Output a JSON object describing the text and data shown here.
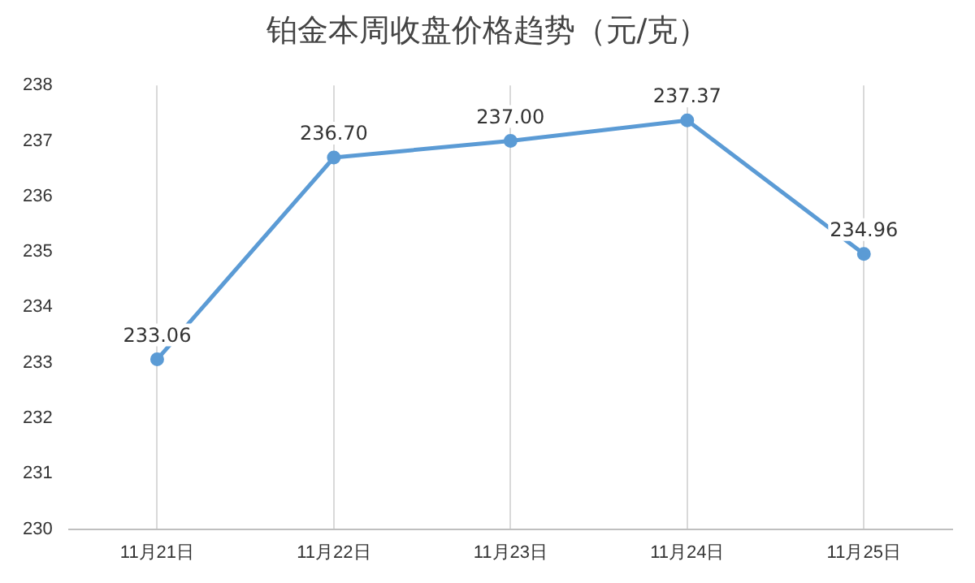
{
  "chart_data": {
    "type": "line",
    "title": "铂金本周收盘价格趋势（元/克）",
    "categories": [
      "11月21日",
      "11月22日",
      "11月23日",
      "11月24日",
      "11月25日"
    ],
    "series": [
      {
        "color": "#5b9bd5",
        "values": [
          233.06,
          236.7,
          237.0,
          237.37,
          234.96
        ],
        "value_labels": [
          "233.06",
          "236.70",
          "237.00",
          "237.37",
          "234.96"
        ]
      }
    ],
    "ylim": [
      230,
      238
    ],
    "yticks": [
      230,
      231,
      232,
      233,
      234,
      235,
      236,
      237,
      238
    ],
    "grid": "x",
    "marker": "circle",
    "line_style": "solid",
    "legend": false
  }
}
